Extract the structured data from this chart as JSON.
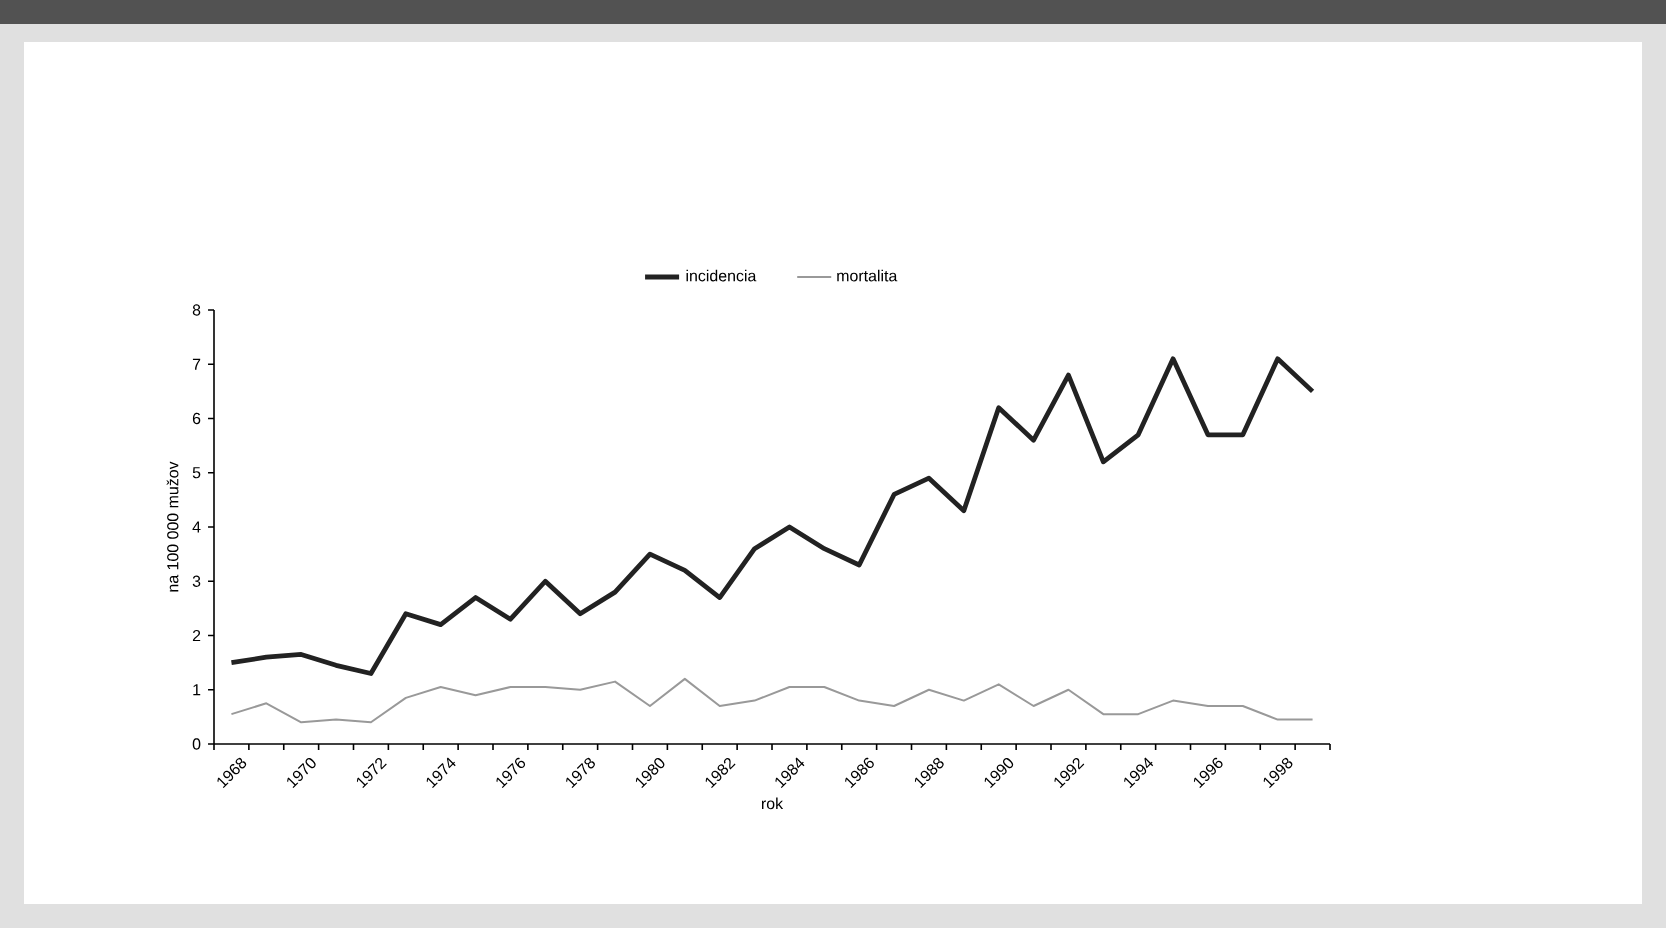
{
  "chart_data": {
    "type": "line",
    "xlabel": "rok",
    "ylabel": "na 100 000 mužov",
    "categories": [
      "1968",
      null,
      "1970",
      null,
      "1972",
      null,
      "1974",
      null,
      "1976",
      null,
      "1978",
      null,
      "1980",
      null,
      "1982",
      null,
      "1984",
      null,
      "1986",
      null,
      "1988",
      null,
      "1990",
      null,
      "1992",
      null,
      "1994",
      null,
      "1996",
      null,
      "1998",
      null
    ],
    "series": [
      {
        "name": "incidencia",
        "color": "#222222",
        "values": [
          1.5,
          1.6,
          1.65,
          1.45,
          1.3,
          2.4,
          2.2,
          2.7,
          2.3,
          3.0,
          2.4,
          2.8,
          3.5,
          3.2,
          2.7,
          3.6,
          4.0,
          3.6,
          3.3,
          4.6,
          4.9,
          4.3,
          6.2,
          5.6,
          6.8,
          5.2,
          5.7,
          7.1,
          5.7,
          5.7,
          7.1,
          6.5
        ]
      },
      {
        "name": "mortalita",
        "color": "#999999",
        "values": [
          0.55,
          0.75,
          0.4,
          0.45,
          0.4,
          0.85,
          1.05,
          0.9,
          1.05,
          1.05,
          1.0,
          1.15,
          0.7,
          1.2,
          0.7,
          0.8,
          1.05,
          1.05,
          0.8,
          0.7,
          1.0,
          0.8,
          1.1,
          0.7,
          1.0,
          0.55,
          0.55,
          0.8,
          0.7,
          0.7,
          0.45,
          0.45
        ]
      }
    ],
    "ylim": [
      0,
      8
    ],
    "yticks": [
      0,
      1,
      2,
      3,
      4,
      5,
      6,
      7,
      8
    ],
    "grid": false,
    "legend": "top",
    "marker": "none",
    "line_style": "solid"
  }
}
